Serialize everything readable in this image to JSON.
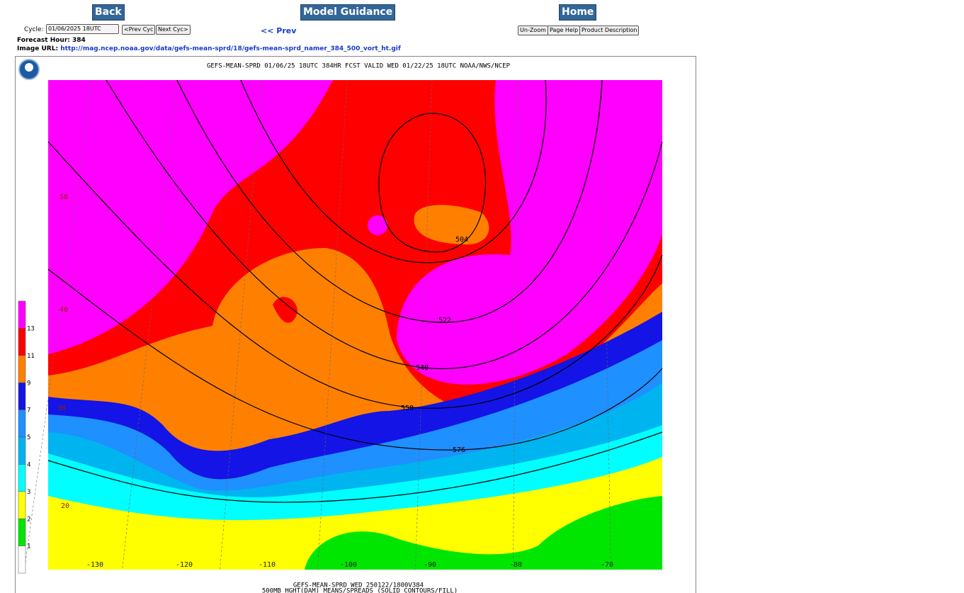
{
  "nav": {
    "back": "Back",
    "model_guidance": "Model Guidance",
    "home": "Home"
  },
  "controls": {
    "cycle_label": "Cycle:",
    "cycle_value": "01/06/2025 18UTC",
    "prev_cyc": "<Prev Cyc",
    "next_cyc": "Next Cyc>",
    "prev": "<< Prev",
    "unzoom": "Un-Zoom",
    "page_help": "Page Help",
    "product_description": "Product Description"
  },
  "info": {
    "forecast_hour": "Forecast Hour: 384",
    "image_url_label": "Image URL:",
    "image_url": "http://mag.ncep.noaa.gov/data/gefs-mean-sprd/18/gefs-mean-sprd_namer_384_500_vort_ht.gif"
  },
  "map": {
    "title": "GEFS-MEAN-SPRD 01/06/25 18UTC 384HR FCST VALID WED 01/22/25 18UTC NOAA/NWS/NCEP",
    "footer_1": "GEFS-MEAN-SPRD WED 250122/1800V384",
    "footer_2": "500MB HGHT(DAM) MEANS/SPREADS (SOLID CONTOURS/FILL)",
    "colorbar_colors": [
      "#ff00ff",
      "#ff0000",
      "#ff8000",
      "#1414e6",
      "#1e90ff",
      "#00b4f0",
      "#00ffff",
      "#ffff00",
      "#00e600",
      "#ffffff"
    ],
    "colorbar_labels": [
      "13",
      "11",
      "9",
      "7",
      "5",
      "4",
      "3",
      "2",
      "1"
    ],
    "contour_labels": [
      "504",
      "522",
      "540",
      "558",
      "576"
    ],
    "lat_labels": [
      "50",
      "40",
      "30",
      "20"
    ],
    "lon_labels": [
      "-130",
      "-120",
      "-110",
      "-100",
      "-90",
      "-80",
      "-70"
    ]
  }
}
